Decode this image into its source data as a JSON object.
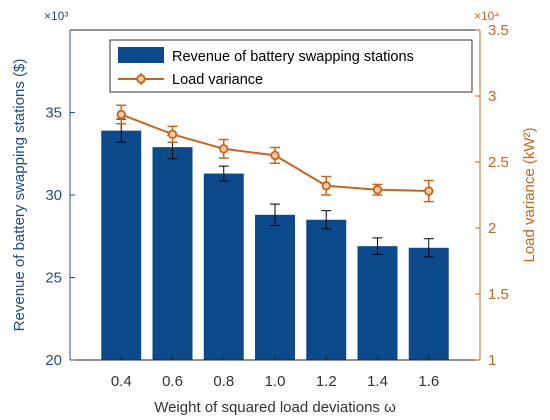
{
  "chart_data": {
    "type": "bar+line",
    "categories": [
      "0.4",
      "0.6",
      "0.8",
      "1.0",
      "1.2",
      "1.4",
      "1.6"
    ],
    "xlabel": "Weight of squared load deviations ω",
    "y_left": {
      "label": "Revenue of battery swapping stations ($)",
      "ylim": [
        20,
        40
      ],
      "ticks": [
        20,
        25,
        30,
        35
      ],
      "multiplier": "×10³",
      "color": "#1f4e8c"
    },
    "y_right": {
      "label": "Load variance (kW²)",
      "ylim": [
        1,
        3.5
      ],
      "ticks": [
        1,
        1.5,
        2,
        2.5,
        3,
        3.5
      ],
      "multiplier": "×10⁴",
      "color": "#c8651b"
    },
    "series": [
      {
        "name": "Revenue of battery swapping stations",
        "type": "bar",
        "axis": "left",
        "color": "#0d4a8c",
        "values": [
          33.9,
          32.9,
          31.3,
          28.8,
          28.5,
          26.9,
          26.8
        ],
        "error": [
          0.7,
          0.7,
          0.45,
          0.65,
          0.55,
          0.5,
          0.55
        ]
      },
      {
        "name": "Load variance",
        "type": "line",
        "axis": "right",
        "color": "#c8651b",
        "values": [
          2.86,
          2.71,
          2.6,
          2.55,
          2.32,
          2.29,
          2.28
        ],
        "error": [
          0.07,
          0.06,
          0.07,
          0.06,
          0.07,
          0.04,
          0.08
        ]
      }
    ],
    "legend_position": "top-right",
    "grid": false
  }
}
